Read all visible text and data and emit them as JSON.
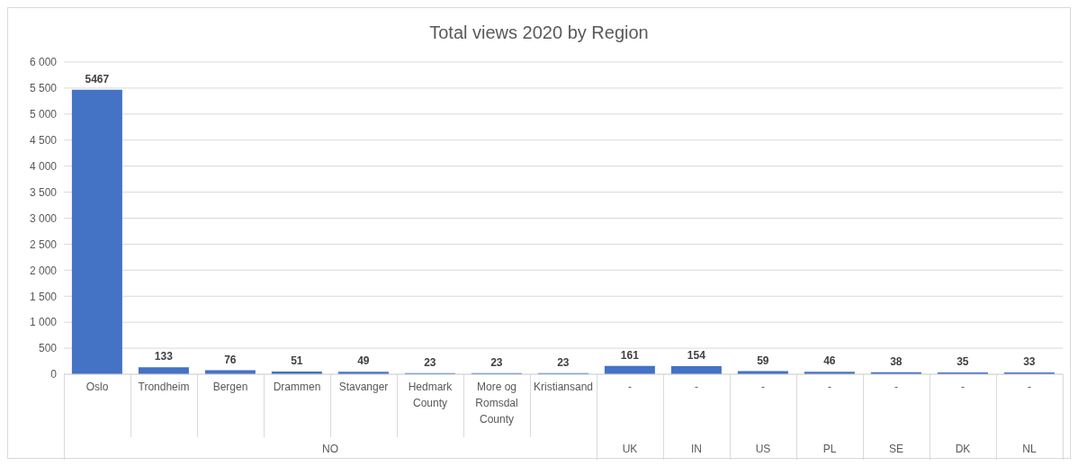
{
  "chart_data": {
    "type": "bar",
    "title": "Total views 2020 by Region",
    "categories": [
      "Oslo",
      "Trondheim",
      "Bergen",
      "Drammen",
      "Stavanger",
      "Hedmark County",
      "More og Romsdal County",
      "Kristiansand",
      "-",
      "-",
      "-",
      "-",
      "-",
      "-",
      "-"
    ],
    "values": [
      5467,
      133,
      76,
      51,
      49,
      23,
      23,
      23,
      161,
      154,
      59,
      46,
      38,
      35,
      33
    ],
    "color": "#4472c4",
    "ylim": [
      0,
      6000
    ],
    "yticks": [
      0,
      {
        "value": 500,
        "label": "500"
      },
      {
        "value": 1000,
        "label": "1 000"
      },
      {
        "value": 1500,
        "label": "1 500"
      },
      {
        "value": 2000,
        "label": "2 000"
      },
      {
        "value": 2500,
        "label": "2 500"
      },
      {
        "value": 3000,
        "label": "3 000"
      },
      {
        "value": 3500,
        "label": "3 500"
      },
      {
        "value": 4000,
        "label": "4 000"
      },
      {
        "value": 4500,
        "label": "4 500"
      },
      {
        "value": 5000,
        "label": "5 000"
      },
      {
        "value": 5500,
        "label": "5 500"
      },
      {
        "value": 6000,
        "label": "6 000"
      }
    ],
    "grid": "y",
    "data_labels": true,
    "annotations": [
      "NO",
      "UK",
      "IN",
      "US",
      "PL",
      "SE",
      "DK",
      "NL"
    ]
  }
}
